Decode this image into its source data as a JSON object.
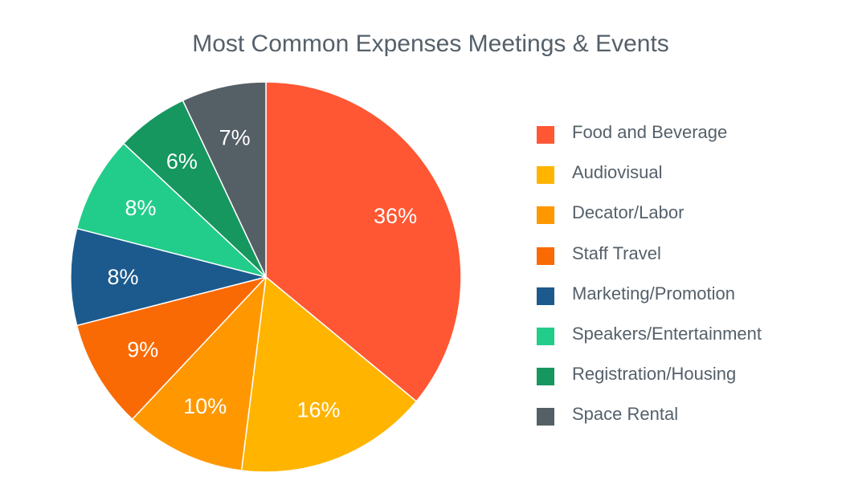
{
  "chart_data": {
    "type": "pie",
    "title": "Most Common Expenses Meetings & Events",
    "legend_position": "right",
    "slices": [
      {
        "name": "Food and Beverage",
        "value": 36,
        "label": "36%",
        "color": "#FF5733"
      },
      {
        "name": "Audiovisual",
        "value": 16,
        "label": "16%",
        "color": "#FFB400"
      },
      {
        "name": "Decator/Labor",
        "value": 10,
        "label": "10%",
        "color": "#FF9800"
      },
      {
        "name": "Staff Travel",
        "value": 9,
        "label": "9%",
        "color": "#F96A04"
      },
      {
        "name": "Marketing/Promotion",
        "value": 8,
        "label": "8%",
        "color": "#1C5A8E"
      },
      {
        "name": "Speakers/Entertainment",
        "value": 8,
        "label": "8%",
        "color": "#22CC8A"
      },
      {
        "name": "Registration/Housing",
        "value": 6,
        "label": "6%",
        "color": "#16975F"
      },
      {
        "name": "Space Rental",
        "value": 7,
        "label": "7%",
        "color": "#555F66"
      }
    ]
  }
}
